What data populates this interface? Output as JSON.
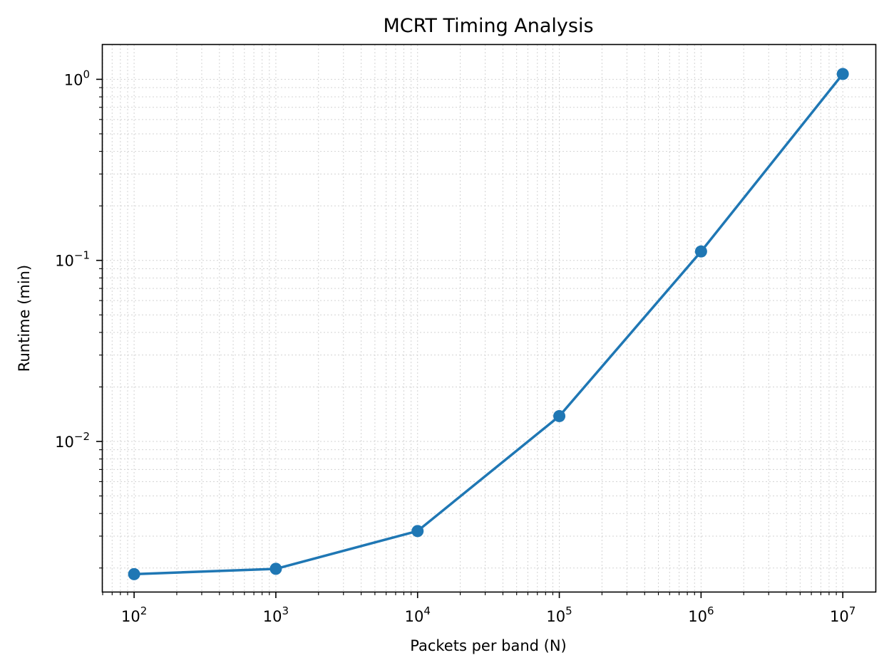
{
  "chart_data": {
    "type": "line",
    "title": "MCRT Timing Analysis",
    "xlabel": "Packets per band (N)",
    "ylabel": "Runtime (min)",
    "xscale": "log",
    "yscale": "log",
    "xlim": [
      60,
      17000000
    ],
    "ylim": [
      0.00148,
      1.55
    ],
    "grid": true,
    "x_ticks": [
      {
        "base": "10",
        "exp": "2",
        "value": 100
      },
      {
        "base": "10",
        "exp": "3",
        "value": 1000
      },
      {
        "base": "10",
        "exp": "4",
        "value": 10000
      },
      {
        "base": "10",
        "exp": "5",
        "value": 100000
      },
      {
        "base": "10",
        "exp": "6",
        "value": 1000000
      },
      {
        "base": "10",
        "exp": "7",
        "value": 10000000
      }
    ],
    "y_ticks": [
      {
        "base": "10",
        "exp": "−2",
        "value": 0.01
      },
      {
        "base": "10",
        "exp": "−1",
        "value": 0.1
      },
      {
        "base": "10",
        "exp": "0",
        "value": 1
      }
    ],
    "series": [
      {
        "color": "#1f77b4",
        "marker": "circle",
        "x": [
          100,
          1000,
          10000,
          100000,
          1000000,
          10000000
        ],
        "y": [
          0.00185,
          0.00198,
          0.0032,
          0.0138,
          0.112,
          1.07
        ]
      }
    ]
  }
}
